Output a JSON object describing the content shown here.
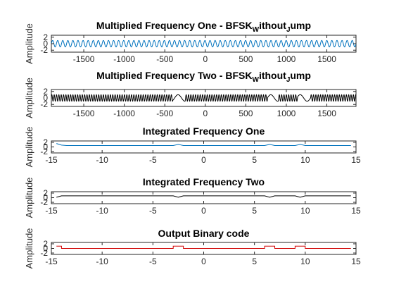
{
  "chart_data": [
    {
      "type": "line",
      "title": "Multiplied Frequency One - BFSK",
      "title_sub": "W",
      "title_tail": "ithout",
      "title_sub2": "J",
      "title_tail2": "ump",
      "ylabel": "Amplitude",
      "xlim": [
        -1900,
        1860
      ],
      "ylim": [
        -2.6,
        2.6
      ],
      "xticks": [
        -1500,
        -1000,
        -500,
        0,
        500,
        1000,
        1500
      ],
      "yticks": [
        -2,
        0,
        2
      ],
      "color": "#0072BD",
      "signal": "sine",
      "amplitude": 1,
      "cycles": 60
    },
    {
      "type": "line",
      "title": "Multiplied Frequency Two - BFSK",
      "title_sub": "W",
      "title_tail": "ithout",
      "title_sub2": "J",
      "title_tail2": "ump",
      "ylabel": "Amplitude",
      "xlim": [
        -1900,
        1860
      ],
      "ylim": [
        -2.6,
        2.6
      ],
      "xticks": [
        -1500,
        -1000,
        -500,
        0,
        500,
        1000,
        1500
      ],
      "yticks": [
        -2,
        0,
        2
      ],
      "color": "#000000",
      "signal": "bfsk",
      "amplitude": 1,
      "high_segments": [
        [
          -1900,
          -400
        ],
        [
          -250,
          770
        ],
        [
          900,
          1140
        ],
        [
          1300,
          1860
        ]
      ]
    },
    {
      "type": "line",
      "title": "Integrated Frequency One",
      "ylabel": "Amplitude",
      "xlim": [
        -15,
        15
      ],
      "ylim": [
        -2.6,
        2.6
      ],
      "xticks": [
        -15,
        -10,
        -5,
        0,
        5,
        10,
        15
      ],
      "yticks": [
        -2,
        0,
        2
      ],
      "color": "#0072BD",
      "x": [
        -14.5,
        -14,
        -13.5,
        -3,
        -2.5,
        -2,
        6,
        6.5,
        7,
        9,
        9.5,
        10,
        14.5
      ],
      "y": [
        1.5,
        0.8,
        0.6,
        0.6,
        1.1,
        0.6,
        0.6,
        1.1,
        0.6,
        0.6,
        1.1,
        0.6,
        0.6
      ]
    },
    {
      "type": "line",
      "title": "Integrated Frequency Two",
      "ylabel": "Amplitude",
      "xlim": [
        -15,
        15
      ],
      "ylim": [
        -2.6,
        2.6
      ],
      "xticks": [
        -15,
        -10,
        -5,
        0,
        5,
        10,
        15
      ],
      "yticks": [
        -2,
        0,
        2
      ],
      "color": "#000000",
      "x": [
        -14.5,
        -14,
        -13.5,
        -3,
        -2.5,
        -2,
        6,
        6.5,
        7,
        9,
        9.5,
        10,
        14.5
      ],
      "y": [
        0.2,
        0.8,
        0.8,
        0.8,
        0.2,
        0.8,
        0.8,
        0.2,
        0.8,
        0.8,
        0.2,
        0.8,
        0.8
      ]
    },
    {
      "type": "line",
      "title": "Output Binary code",
      "ylabel": "Amplitude",
      "xlim": [
        -15,
        15
      ],
      "ylim": [
        -2.6,
        2.6
      ],
      "xticks": [
        -15,
        -10,
        -5,
        0,
        5,
        10,
        15
      ],
      "yticks": [
        -2,
        0,
        2
      ],
      "color": "#D00000",
      "step": true,
      "x": [
        -14.5,
        -14,
        -14,
        -3,
        -3,
        -2,
        -2,
        6,
        6,
        7,
        7,
        9,
        9,
        10,
        10,
        14.5
      ],
      "y": [
        1,
        1,
        0,
        0,
        1,
        1,
        0,
        0,
        1,
        1,
        0,
        0,
        1,
        1,
        0,
        0
      ]
    }
  ]
}
